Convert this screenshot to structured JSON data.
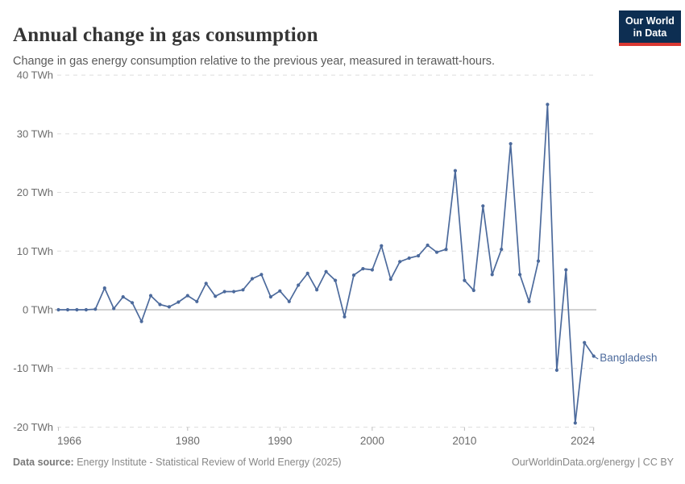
{
  "header": {
    "title": "Annual change in gas consumption",
    "subtitle": "Change in gas energy consumption relative to the previous year, measured in terawatt-hours.",
    "logo": {
      "line1": "Our World",
      "line2": "in Data",
      "bg_color": "#0d2e52",
      "accent_color": "#d93832"
    }
  },
  "chart_data": {
    "type": "line",
    "title": "Annual change in gas consumption",
    "unit": "TWh",
    "xlim": [
      1966,
      2024
    ],
    "ylim": [
      -20,
      40
    ],
    "grid": "horizontal-dashed",
    "legend_position": "end-of-line-label",
    "x_ticks": [
      1966,
      1980,
      1990,
      2000,
      2010,
      2024
    ],
    "x_tick_labels": [
      "1966",
      "1980",
      "1990",
      "2000",
      "2010",
      "2024"
    ],
    "y_ticks": [
      40,
      30,
      20,
      10,
      0,
      -10,
      -20
    ],
    "y_tick_labels": [
      "40 TWh",
      "30 TWh",
      "20 TWh",
      "10 TWh",
      "0 TWh",
      "-10 TWh",
      "-20 TWh"
    ],
    "series": [
      {
        "name": "Bangladesh",
        "color": "#4c6a9c",
        "x": [
          1966,
          1967,
          1968,
          1969,
          1970,
          1971,
          1972,
          1973,
          1974,
          1975,
          1976,
          1977,
          1978,
          1979,
          1980,
          1981,
          1982,
          1983,
          1984,
          1985,
          1986,
          1987,
          1988,
          1989,
          1990,
          1991,
          1992,
          1993,
          1994,
          1995,
          1996,
          1997,
          1998,
          1999,
          2000,
          2001,
          2002,
          2003,
          2004,
          2005,
          2006,
          2007,
          2008,
          2009,
          2010,
          2011,
          2012,
          2013,
          2014,
          2015,
          2016,
          2017,
          2018,
          2019,
          2020,
          2021,
          2022,
          2023,
          2024
        ],
        "values": [
          0,
          0,
          0,
          0,
          0.1,
          3.7,
          0.2,
          2.2,
          1.2,
          -2.0,
          2.4,
          0.9,
          0.5,
          1.3,
          2.4,
          1.4,
          4.5,
          2.3,
          3.1,
          3.1,
          3.4,
          5.3,
          6.0,
          2.2,
          3.2,
          1.4,
          4.2,
          6.2,
          3.4,
          6.5,
          5.0,
          -1.2,
          5.9,
          7.0,
          6.8,
          10.9,
          5.2,
          8.2,
          8.8,
          9.2,
          11.0,
          9.8,
          10.3,
          23.7,
          5.0,
          3.3,
          17.7,
          6.0,
          10.3,
          28.3,
          6.0,
          1.4,
          8.3,
          35.0,
          -10.3,
          6.8,
          -19.3,
          -5.6,
          -7.9
        ]
      }
    ]
  },
  "footer": {
    "datasource_label": "Data source:",
    "datasource_text": " Energy Institute - Statistical Review of World Energy (2025)",
    "right_text": "OurWorldinData.org/energy | CC BY"
  }
}
